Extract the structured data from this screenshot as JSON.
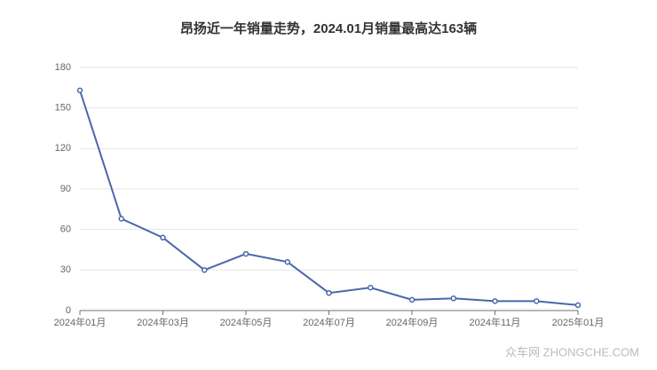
{
  "chart_data": {
    "type": "line",
    "title": "昂扬近一年销量走势，2024.01月销量最高达163辆",
    "categories": [
      "2024年01月",
      null,
      "2024年03月",
      null,
      "2024年05月",
      null,
      "2024年07月",
      null,
      "2024年09月",
      null,
      "2024年11月",
      null,
      "2025年01月"
    ],
    "values": [
      163,
      68,
      54,
      30,
      42,
      36,
      13,
      17,
      8,
      9,
      7,
      7,
      4
    ],
    "color": "#4a67ab",
    "ylim": [
      0,
      180
    ],
    "yticks": [
      0,
      30,
      60,
      90,
      120,
      150,
      180
    ],
    "grid": true
  },
  "watermark": "众车网 ZHONGCHE.COM"
}
